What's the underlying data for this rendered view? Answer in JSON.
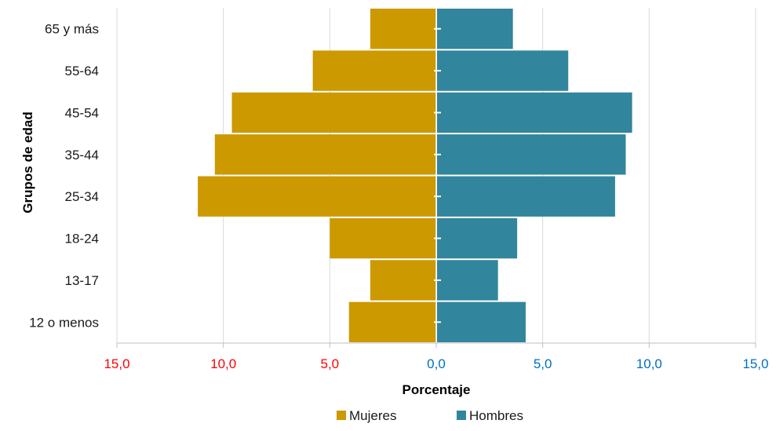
{
  "chart_data": {
    "type": "bar",
    "orientation": "horizontal",
    "subtype": "population-pyramid",
    "categories": [
      "65 y más",
      "55-64",
      "45-54",
      "35-44",
      "25-34",
      "18-24",
      "13-17",
      "12 o menos"
    ],
    "series": [
      {
        "name": "Mujeres",
        "values": [
          3.1,
          5.8,
          9.6,
          10.4,
          11.2,
          5.0,
          3.1,
          4.1
        ],
        "color": "#CC9900"
      },
      {
        "name": "Hombres",
        "values": [
          3.6,
          6.2,
          9.2,
          8.9,
          8.4,
          3.8,
          2.9,
          4.2
        ],
        "color": "#31859C"
      }
    ],
    "xlabel": "Porcentaje",
    "ylabel": "Grupos de edad",
    "xlim": [
      -15,
      15
    ],
    "x_ticks": [
      {
        "value": -15,
        "label": "15,0",
        "color": "#FF0000"
      },
      {
        "value": -10,
        "label": "10,0",
        "color": "#FF0000"
      },
      {
        "value": -5,
        "label": "5,0",
        "color": "#FF0000"
      },
      {
        "value": 0,
        "label": "0,0",
        "color": "#0070C0"
      },
      {
        "value": 5,
        "label": "5,0",
        "color": "#0070C0"
      },
      {
        "value": 10,
        "label": "10,0",
        "color": "#0070C0"
      },
      {
        "value": 15,
        "label": "15,0",
        "color": "#0070C0"
      }
    ],
    "grid": "vertical",
    "legend": "bottom",
    "legend_entries": [
      "Mujeres",
      "Hombres"
    ]
  }
}
